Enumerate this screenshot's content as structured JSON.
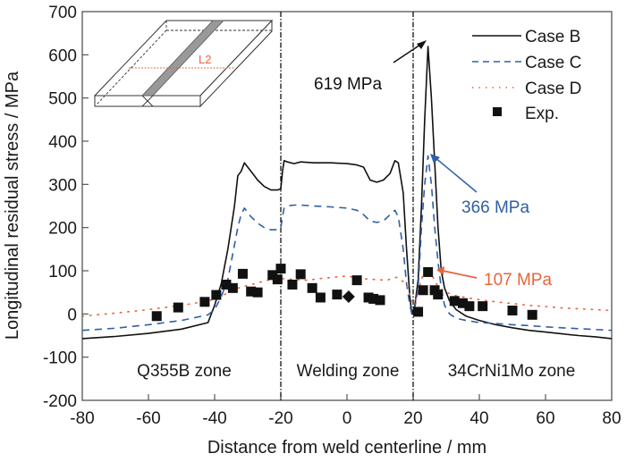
{
  "chart_data": {
    "type": "line",
    "title": "",
    "xlabel": "Distance from weld centerline / mm",
    "ylabel": "Longitudinal residual stress / MPa",
    "xlim": [
      -80,
      80
    ],
    "ylim": [
      -200,
      700
    ],
    "xticks": [
      -80,
      -60,
      -40,
      -20,
      0,
      20,
      40,
      60,
      80
    ],
    "yticks": [
      -200,
      -100,
      0,
      100,
      200,
      300,
      400,
      500,
      600,
      700
    ],
    "grid": false,
    "legend_position": "top-right",
    "zone_boundaries": [
      -20,
      20
    ],
    "zones": [
      {
        "label": "Q355B zone",
        "x_center": -50
      },
      {
        "label": "Welding zone",
        "x_center": 0
      },
      {
        "label": "34CrNi1Mo zone",
        "x_center": 50
      }
    ],
    "series": [
      {
        "name": "Case B",
        "style": "solid",
        "color": "#111111",
        "x": [
          -80,
          -70,
          -60,
          -50,
          -42,
          -40,
          -38,
          -36,
          -35,
          -34,
          -33,
          -32,
          -31,
          -29,
          -27,
          -25,
          -23,
          -21,
          -20,
          -19.5,
          -19,
          -18,
          -16,
          -14,
          -10,
          -5,
          0,
          3,
          5,
          7,
          9,
          11,
          13,
          14.5,
          15.5,
          17,
          18,
          19,
          19.6,
          20.5,
          21.5,
          22.5,
          23.5,
          24.5,
          25.5,
          26.5,
          27.5,
          28.5,
          29.5,
          31,
          33,
          36,
          40,
          45,
          50,
          55,
          60,
          65,
          70,
          75,
          80
        ],
        "y": [
          -57,
          -52,
          -45,
          -35,
          -20,
          20,
          70,
          150,
          200,
          250,
          320,
          330,
          350,
          330,
          310,
          295,
          287,
          287,
          290,
          330,
          355,
          352,
          348,
          352,
          350,
          350,
          348,
          345,
          340,
          310,
          305,
          310,
          325,
          355,
          350,
          280,
          150,
          40,
          0,
          20,
          80,
          250,
          450,
          619,
          500,
          350,
          200,
          100,
          60,
          30,
          10,
          -5,
          -15,
          -25,
          -32,
          -38,
          -42,
          -46,
          -50,
          -53,
          -57
        ]
      },
      {
        "name": "Case C",
        "style": "dashed",
        "color": "#2f5fa6",
        "x": [
          -80,
          -70,
          -60,
          -50,
          -42,
          -40,
          -38,
          -36,
          -35,
          -34,
          -33,
          -32,
          -31,
          -29,
          -27,
          -25,
          -23,
          -21,
          -20,
          -19.5,
          -19,
          -18,
          -16,
          -14,
          -10,
          -5,
          0,
          3,
          5,
          7,
          9,
          11,
          13,
          14.5,
          15.5,
          17,
          18,
          19,
          19.6,
          20.5,
          21.5,
          22.5,
          23.5,
          24.5,
          25.5,
          26.5,
          27.5,
          28.5,
          29.5,
          31,
          33,
          36,
          40,
          45,
          50,
          55,
          60,
          65,
          70,
          75,
          80
        ],
        "y": [
          -38,
          -33,
          -25,
          -15,
          -2,
          10,
          40,
          80,
          120,
          160,
          200,
          230,
          245,
          225,
          210,
          200,
          195,
          195,
          200,
          225,
          245,
          250,
          252,
          252,
          250,
          248,
          245,
          240,
          230,
          215,
          212,
          215,
          230,
          240,
          225,
          150,
          70,
          20,
          0,
          15,
          60,
          200,
          300,
          366,
          300,
          200,
          120,
          60,
          20,
          0,
          -10,
          -15,
          -20,
          -22,
          -25,
          -27,
          -30,
          -32,
          -34,
          -36,
          -38
        ]
      },
      {
        "name": "Case D",
        "style": "dotted",
        "color": "#e8643c",
        "x": [
          -80,
          -70,
          -60,
          -50,
          -42,
          -38,
          -35,
          -32,
          -28,
          -24,
          -20,
          -16,
          -12,
          -8,
          -4,
          0,
          4,
          8,
          12,
          15,
          17,
          18.5,
          19.5,
          20.5,
          21.5,
          22.5,
          23.5,
          24.5,
          25.5,
          26.5,
          28,
          30,
          33,
          36,
          40,
          45,
          50,
          55,
          60,
          65,
          70,
          75,
          80
        ],
        "y": [
          -5,
          2,
          10,
          20,
          30,
          40,
          55,
          62,
          70,
          78,
          82,
          80,
          78,
          82,
          85,
          88,
          82,
          80,
          78,
          85,
          75,
          60,
          30,
          25,
          50,
          80,
          100,
          107,
          95,
          75,
          60,
          50,
          42,
          38,
          33,
          28,
          24,
          20,
          17,
          14,
          12,
          10,
          8
        ]
      },
      {
        "name": "Exp.",
        "style": "marker-square",
        "color": "#111111",
        "x": [
          -57.5,
          -51,
          -43,
          -39.5,
          -36.5,
          -34.5,
          -31.5,
          -29,
          -27,
          -22.5,
          -21,
          -20,
          -16.5,
          -14,
          -10.5,
          -8,
          -3,
          0.5,
          3,
          6.5,
          8,
          10,
          21.5,
          23,
          24.5,
          26.5,
          27.5,
          32.5,
          35,
          37,
          41,
          50,
          56
        ],
        "y": [
          -5,
          15,
          28,
          44,
          68,
          60,
          93,
          52,
          50,
          90,
          80,
          105,
          68,
          92,
          60,
          38,
          45,
          40,
          78,
          38,
          35,
          32,
          5,
          55,
          97,
          55,
          45,
          30,
          25,
          18,
          18,
          8,
          -2
        ],
        "marker_shapes_note": "square; one diamond at x=0.5"
      }
    ],
    "annotations": [
      {
        "text": "619 MPa",
        "x": 24.5,
        "y": 619,
        "color": "#111111"
      },
      {
        "text": "366 MPa",
        "x": 24.5,
        "y": 366,
        "color": "#2f5fa6"
      },
      {
        "text": "107 MPa",
        "x": 24.5,
        "y": 107,
        "color": "#e8643c"
      }
    ],
    "inset": {
      "label": "L2",
      "description": "3D sketch of welded plate with weld bead and measurement line L2"
    }
  },
  "labels": {
    "ylabel": "Longitudinal residual stress / MPa",
    "xlabel": "Distance from weld centerline / mm",
    "inset_line_label": "L2",
    "annot_b": "619 MPa",
    "annot_c": "366 MPa",
    "annot_d": "107 MPa",
    "zone_left": "Q355B zone",
    "zone_mid": "Welding zone",
    "zone_right": "34CrNi1Mo zone",
    "legend": [
      "Case B",
      "Case C",
      "Case D",
      "Exp."
    ]
  },
  "colors": {
    "case_b": "#111111",
    "case_c": "#2f5fa6",
    "case_d": "#e8643c",
    "inset_weld": "#999999"
  }
}
